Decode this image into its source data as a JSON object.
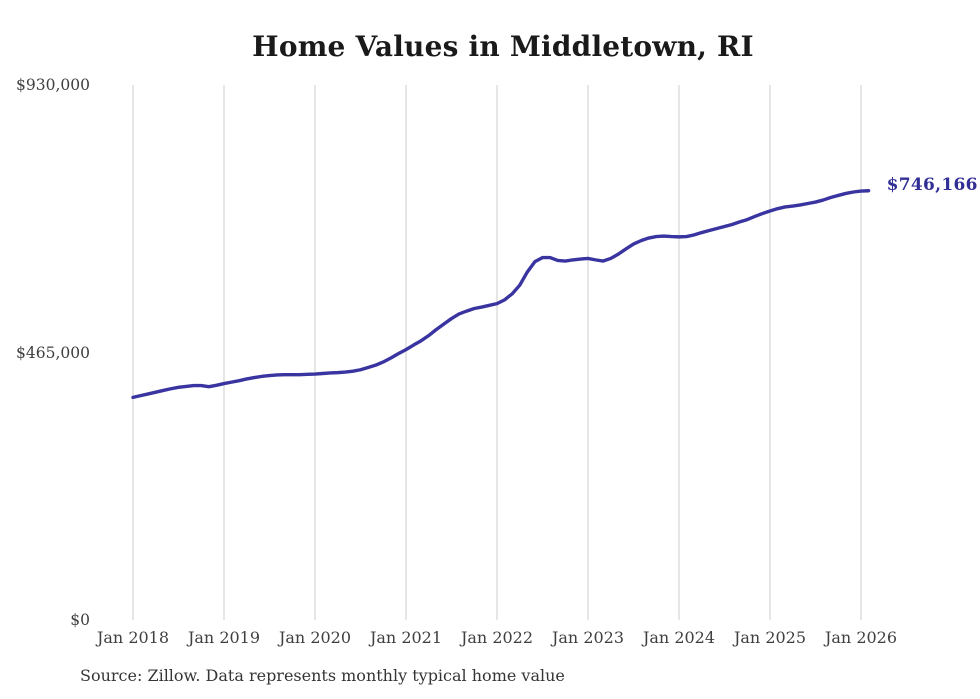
{
  "source": "Source: Zillow. Data represents monthly typical home value",
  "colors": {
    "background": "#ffffff",
    "line": "#3a34a0",
    "end_label": "#312f96",
    "grid": "#cccccc",
    "title": "#1a1a1a",
    "axis_text": "#3f3f3f",
    "source_text": "#353535"
  },
  "chart_data": {
    "type": "line",
    "title": "Home Values in Middletown, RI",
    "xlabel": "",
    "ylabel": "",
    "ylim": [
      0,
      930000
    ],
    "grid": "vertical-only",
    "legend": "none",
    "y_ticks": [
      {
        "label": "$930,000",
        "value": 930000
      },
      {
        "label": "$465,000",
        "value": 465000
      },
      {
        "label": "$0",
        "value": 0
      }
    ],
    "x_ticks": [
      {
        "label": "Jan 2018",
        "month": 0
      },
      {
        "label": "Jan 2019",
        "month": 12
      },
      {
        "label": "Jan 2020",
        "month": 24
      },
      {
        "label": "Jan 2021",
        "month": 36
      },
      {
        "label": "Jan 2022",
        "month": 48
      },
      {
        "label": "Jan 2023",
        "month": 60
      },
      {
        "label": "Jan 2024",
        "month": 72
      },
      {
        "label": "Jan 2025",
        "month": 84
      },
      {
        "label": "Jan 2026",
        "month": 96
      }
    ],
    "series": [
      {
        "name": "Monthly typical home value",
        "start": "2018-01",
        "interval": "monthly",
        "values": [
          387000,
          390000,
          393000,
          396000,
          399000,
          402000,
          404500,
          406000,
          407500,
          407500,
          405500,
          408000,
          411000,
          413500,
          416000,
          419000,
          421500,
          423500,
          425000,
          426000,
          426500,
          426500,
          426500,
          427000,
          427500,
          428500,
          429500,
          430000,
          431000,
          432500,
          435000,
          439000,
          443000,
          448500,
          455500,
          463000,
          470000,
          478000,
          485500,
          494500,
          505000,
          514500,
          524000,
          532000,
          537000,
          541500,
          544000,
          547000,
          550000,
          556500,
          567000,
          582000,
          605000,
          623000,
          630000,
          630000,
          625000,
          624000,
          626000,
          627500,
          628500,
          626000,
          624000,
          628500,
          636000,
          645000,
          653500,
          659500,
          664000,
          666500,
          667500,
          666500,
          666000,
          666500,
          669500,
          673500,
          677000,
          680500,
          684000,
          687500,
          692000,
          696000,
          701500,
          706500,
          711000,
          715000,
          718000,
          719500,
          721500,
          724000,
          726500,
          730000,
          734500,
          738000,
          741500,
          744000,
          745700,
          746166
        ]
      }
    ],
    "end_annotation": {
      "text": "$746,166",
      "value": 746166,
      "month": 97
    }
  }
}
